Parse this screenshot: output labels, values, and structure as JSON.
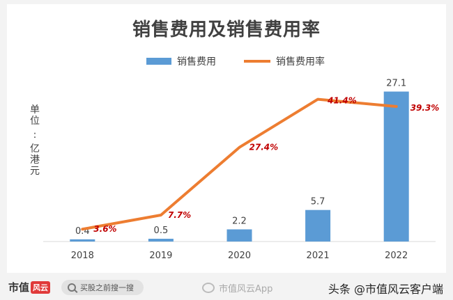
{
  "title": "销售费用及销售费用率",
  "legend": {
    "bar_label": "销售费用",
    "line_label": "销售费用率"
  },
  "ylabel_chars": [
    "单",
    "位",
    ":",
    "亿",
    "港",
    "元"
  ],
  "chart_data": {
    "type": "bar+line",
    "title": "销售费用及销售费用率",
    "ylabel": "单位：亿港元",
    "categories": [
      "2018",
      "2019",
      "2020",
      "2021",
      "2022"
    ],
    "series": [
      {
        "name": "销售费用",
        "type": "bar",
        "values": [
          0.4,
          0.5,
          2.2,
          5.7,
          27.1
        ],
        "labels": [
          "0.4",
          "0.5",
          "2.2",
          "5.7",
          "27.1"
        ]
      },
      {
        "name": "销售费用率",
        "type": "line",
        "values": [
          3.6,
          7.7,
          27.4,
          41.4,
          39.3
        ],
        "labels": [
          "3.6%",
          "7.7%",
          "27.4%",
          "41.4%",
          "39.3%"
        ]
      }
    ],
    "colors": {
      "bar": "#5b9bd5",
      "line": "#ed7d31",
      "line_label": "#c00000",
      "bar_label": "#404040",
      "axis": "#d9d9d9"
    },
    "bar_ylim": [
      0,
      28.3
    ],
    "line_ylim": [
      0,
      48
    ],
    "grid": false,
    "legend_position": "top"
  },
  "footer": {
    "logo_text": "市值",
    "logo_badge": "风云",
    "search_text": "买股之前搜一搜",
    "weibo_text": "市值风云App",
    "credit_text": "头条 @市值风云客户端"
  }
}
